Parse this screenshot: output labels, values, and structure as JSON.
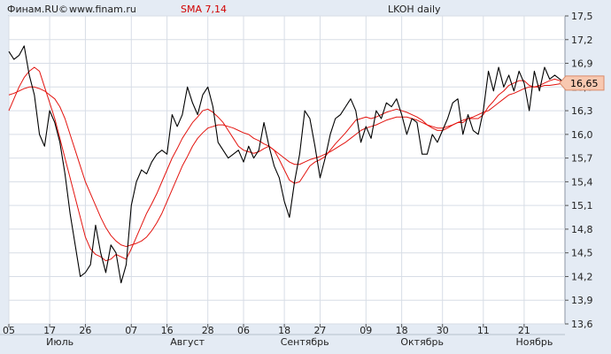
{
  "header": {
    "source": "Финам.RU©",
    "site": "www.finam.ru",
    "indicator": "SMA 7,14",
    "ticker": "LKOH daily"
  },
  "colors": {
    "background": "#e4ebf4",
    "plot_background": "#ffffff",
    "grid": "#d7dde6",
    "price_line": "#000000",
    "sma_line": "#e3140f",
    "last_value_box": "#f8c8b0"
  },
  "chart_data": {
    "type": "line",
    "title": "LKOH daily",
    "xlabel": "",
    "ylabel": "",
    "ylim": [
      13.6,
      17.5
    ],
    "yticks": [
      "13,6",
      "13,9",
      "14,2",
      "14,5",
      "14,8",
      "15,1",
      "15,4",
      "15,7",
      "16,0",
      "16,3",
      "16,6",
      "16,9",
      "17,2",
      "17,5"
    ],
    "x_day_ticks": [
      {
        "label": "05",
        "index": 0
      },
      {
        "label": "17",
        "index": 8
      },
      {
        "label": "26",
        "index": 15
      },
      {
        "label": "07",
        "index": 24
      },
      {
        "label": "16",
        "index": 31
      },
      {
        "label": "28",
        "index": 39
      },
      {
        "label": "06",
        "index": 46
      },
      {
        "label": "18",
        "index": 54
      },
      {
        "label": "27",
        "index": 61
      },
      {
        "label": "09",
        "index": 70
      },
      {
        "label": "18",
        "index": 77
      },
      {
        "label": "30",
        "index": 85
      },
      {
        "label": "11",
        "index": 93
      },
      {
        "label": "21",
        "index": 101
      }
    ],
    "x_month_labels": [
      {
        "label": "Июль",
        "index": 10
      },
      {
        "label": "Август",
        "index": 35
      },
      {
        "label": "Сентябрь",
        "index": 58
      },
      {
        "label": "Октябрь",
        "index": 81
      },
      {
        "label": "Ноябрь",
        "index": 103
      }
    ],
    "last_value_label": "16,65",
    "grid": true,
    "series": [
      {
        "key": "close",
        "values": [
          17.05,
          16.95,
          17.0,
          17.12,
          16.75,
          16.5,
          16.0,
          15.85,
          16.3,
          16.15,
          15.9,
          15.5,
          15.0,
          14.6,
          14.2,
          14.25,
          14.35,
          14.85,
          14.5,
          14.25,
          14.6,
          14.5,
          14.12,
          14.35,
          15.1,
          15.4,
          15.55,
          15.5,
          15.65,
          15.75,
          15.8,
          15.75,
          16.25,
          16.1,
          16.25,
          16.6,
          16.4,
          16.25,
          16.5,
          16.6,
          16.35,
          15.9,
          15.8,
          15.7,
          15.75,
          15.8,
          15.65,
          15.85,
          15.7,
          15.8,
          16.15,
          15.85,
          15.6,
          15.45,
          15.15,
          14.95,
          15.4,
          15.75,
          16.3,
          16.2,
          15.85,
          15.45,
          15.7,
          16.0,
          16.2,
          16.25,
          16.35,
          16.45,
          16.3,
          15.9,
          16.1,
          15.95,
          16.3,
          16.2,
          16.4,
          16.35,
          16.45,
          16.25,
          16.0,
          16.2,
          16.15,
          15.75,
          15.75,
          16.0,
          15.9,
          16.05,
          16.2,
          16.4,
          16.45,
          16.0,
          16.25,
          16.05,
          16.0,
          16.3,
          16.8,
          16.55,
          16.85,
          16.6,
          16.75,
          16.55,
          16.8,
          16.65,
          16.3,
          16.8,
          16.55,
          16.85,
          16.7,
          16.75,
          16.7,
          16.65
        ]
      },
      {
        "key": "sma7",
        "values": [
          16.3,
          16.45,
          16.6,
          16.72,
          16.8,
          16.85,
          16.8,
          16.6,
          16.4,
          16.2,
          15.95,
          15.7,
          15.45,
          15.2,
          14.95,
          14.7,
          14.55,
          14.48,
          14.45,
          14.4,
          14.42,
          14.48,
          14.45,
          14.42,
          14.55,
          14.7,
          14.85,
          15.0,
          15.12,
          15.25,
          15.4,
          15.55,
          15.7,
          15.82,
          15.95,
          16.05,
          16.15,
          16.22,
          16.3,
          16.32,
          16.28,
          16.22,
          16.15,
          16.05,
          15.95,
          15.85,
          15.8,
          15.78,
          15.76,
          15.78,
          15.82,
          15.85,
          15.8,
          15.68,
          15.55,
          15.42,
          15.38,
          15.4,
          15.5,
          15.6,
          15.65,
          15.68,
          15.72,
          15.8,
          15.88,
          15.95,
          16.02,
          16.1,
          16.18,
          16.2,
          16.22,
          16.2,
          16.22,
          16.25,
          16.28,
          16.3,
          16.32,
          16.3,
          16.28,
          16.25,
          16.22,
          16.18,
          16.12,
          16.08,
          16.05,
          16.05,
          16.08,
          16.12,
          16.15,
          16.15,
          16.2,
          16.2,
          16.2,
          16.25,
          16.35,
          16.42,
          16.5,
          16.55,
          16.62,
          16.65,
          16.68,
          16.68,
          16.62,
          16.6,
          16.62,
          16.65,
          16.68,
          16.7,
          16.68,
          16.65
        ]
      },
      {
        "key": "sma14",
        "values": [
          16.5,
          16.52,
          16.55,
          16.58,
          16.6,
          16.6,
          16.58,
          16.55,
          16.5,
          16.45,
          16.35,
          16.2,
          16.0,
          15.8,
          15.6,
          15.4,
          15.25,
          15.1,
          14.95,
          14.82,
          14.72,
          14.65,
          14.6,
          14.58,
          14.6,
          14.62,
          14.65,
          14.7,
          14.78,
          14.88,
          15.0,
          15.15,
          15.3,
          15.45,
          15.6,
          15.72,
          15.85,
          15.95,
          16.02,
          16.08,
          16.1,
          16.12,
          16.12,
          16.1,
          16.08,
          16.05,
          16.02,
          16.0,
          15.95,
          15.92,
          15.88,
          15.85,
          15.8,
          15.75,
          15.7,
          15.65,
          15.62,
          15.62,
          15.65,
          15.68,
          15.7,
          15.72,
          15.75,
          15.78,
          15.82,
          15.86,
          15.9,
          15.95,
          16.0,
          16.05,
          16.08,
          16.1,
          16.12,
          16.15,
          16.18,
          16.2,
          16.22,
          16.22,
          16.22,
          16.2,
          16.18,
          16.15,
          16.12,
          16.1,
          16.08,
          16.08,
          16.1,
          16.12,
          16.15,
          16.18,
          16.2,
          16.22,
          16.25,
          16.28,
          16.3,
          16.35,
          16.4,
          16.45,
          16.5,
          16.52,
          16.55,
          16.58,
          16.6,
          16.6,
          16.6,
          16.62,
          16.62,
          16.63,
          16.64,
          16.65
        ]
      }
    ]
  }
}
